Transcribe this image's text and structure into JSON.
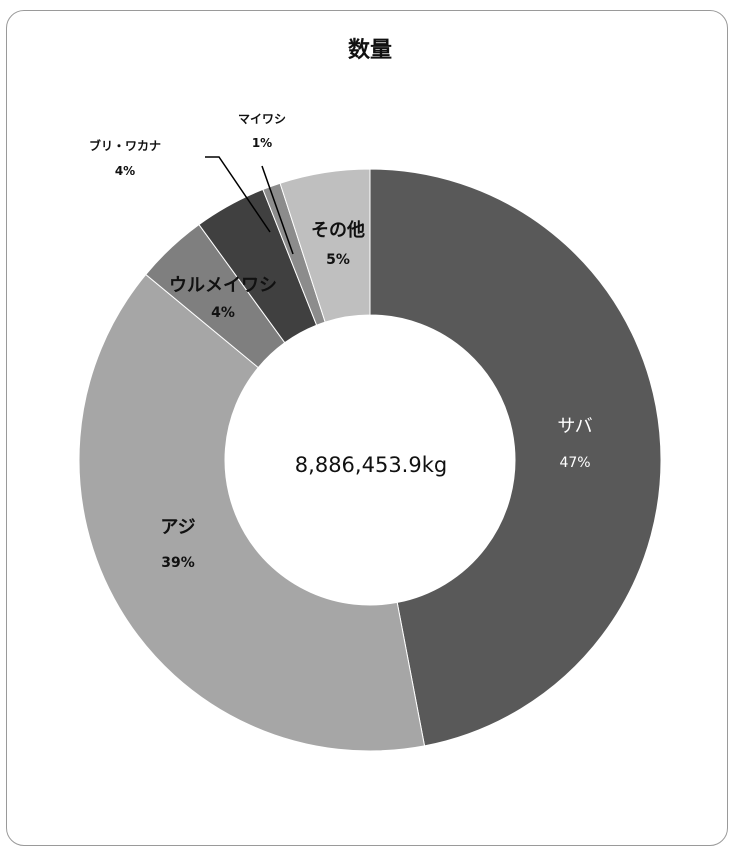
{
  "chart_data": {
    "type": "pie",
    "variant": "donut",
    "title": "数量",
    "center_label": "8,886,453.9kg",
    "start": "12 o'clock",
    "direction": "clockwise",
    "slices": [
      {
        "label": "サバ",
        "value": 47,
        "pct_label": "47%",
        "color": "#595959"
      },
      {
        "label": "アジ",
        "value": 39,
        "pct_label": "39%",
        "color": "#a6a6a6"
      },
      {
        "label": "ウルメイワシ",
        "value": 4,
        "pct_label": "4%",
        "color": "#7f7f7f"
      },
      {
        "label": "ブリ・ワカナ",
        "value": 4,
        "pct_label": "4%",
        "color": "#404040"
      },
      {
        "label": "マイワシ",
        "value": 1,
        "pct_label": "1%",
        "color": "#8c8c8c"
      },
      {
        "label": "その他",
        "value": 5,
        "pct_label": "5%",
        "color": "#bfbfbf"
      }
    ]
  }
}
